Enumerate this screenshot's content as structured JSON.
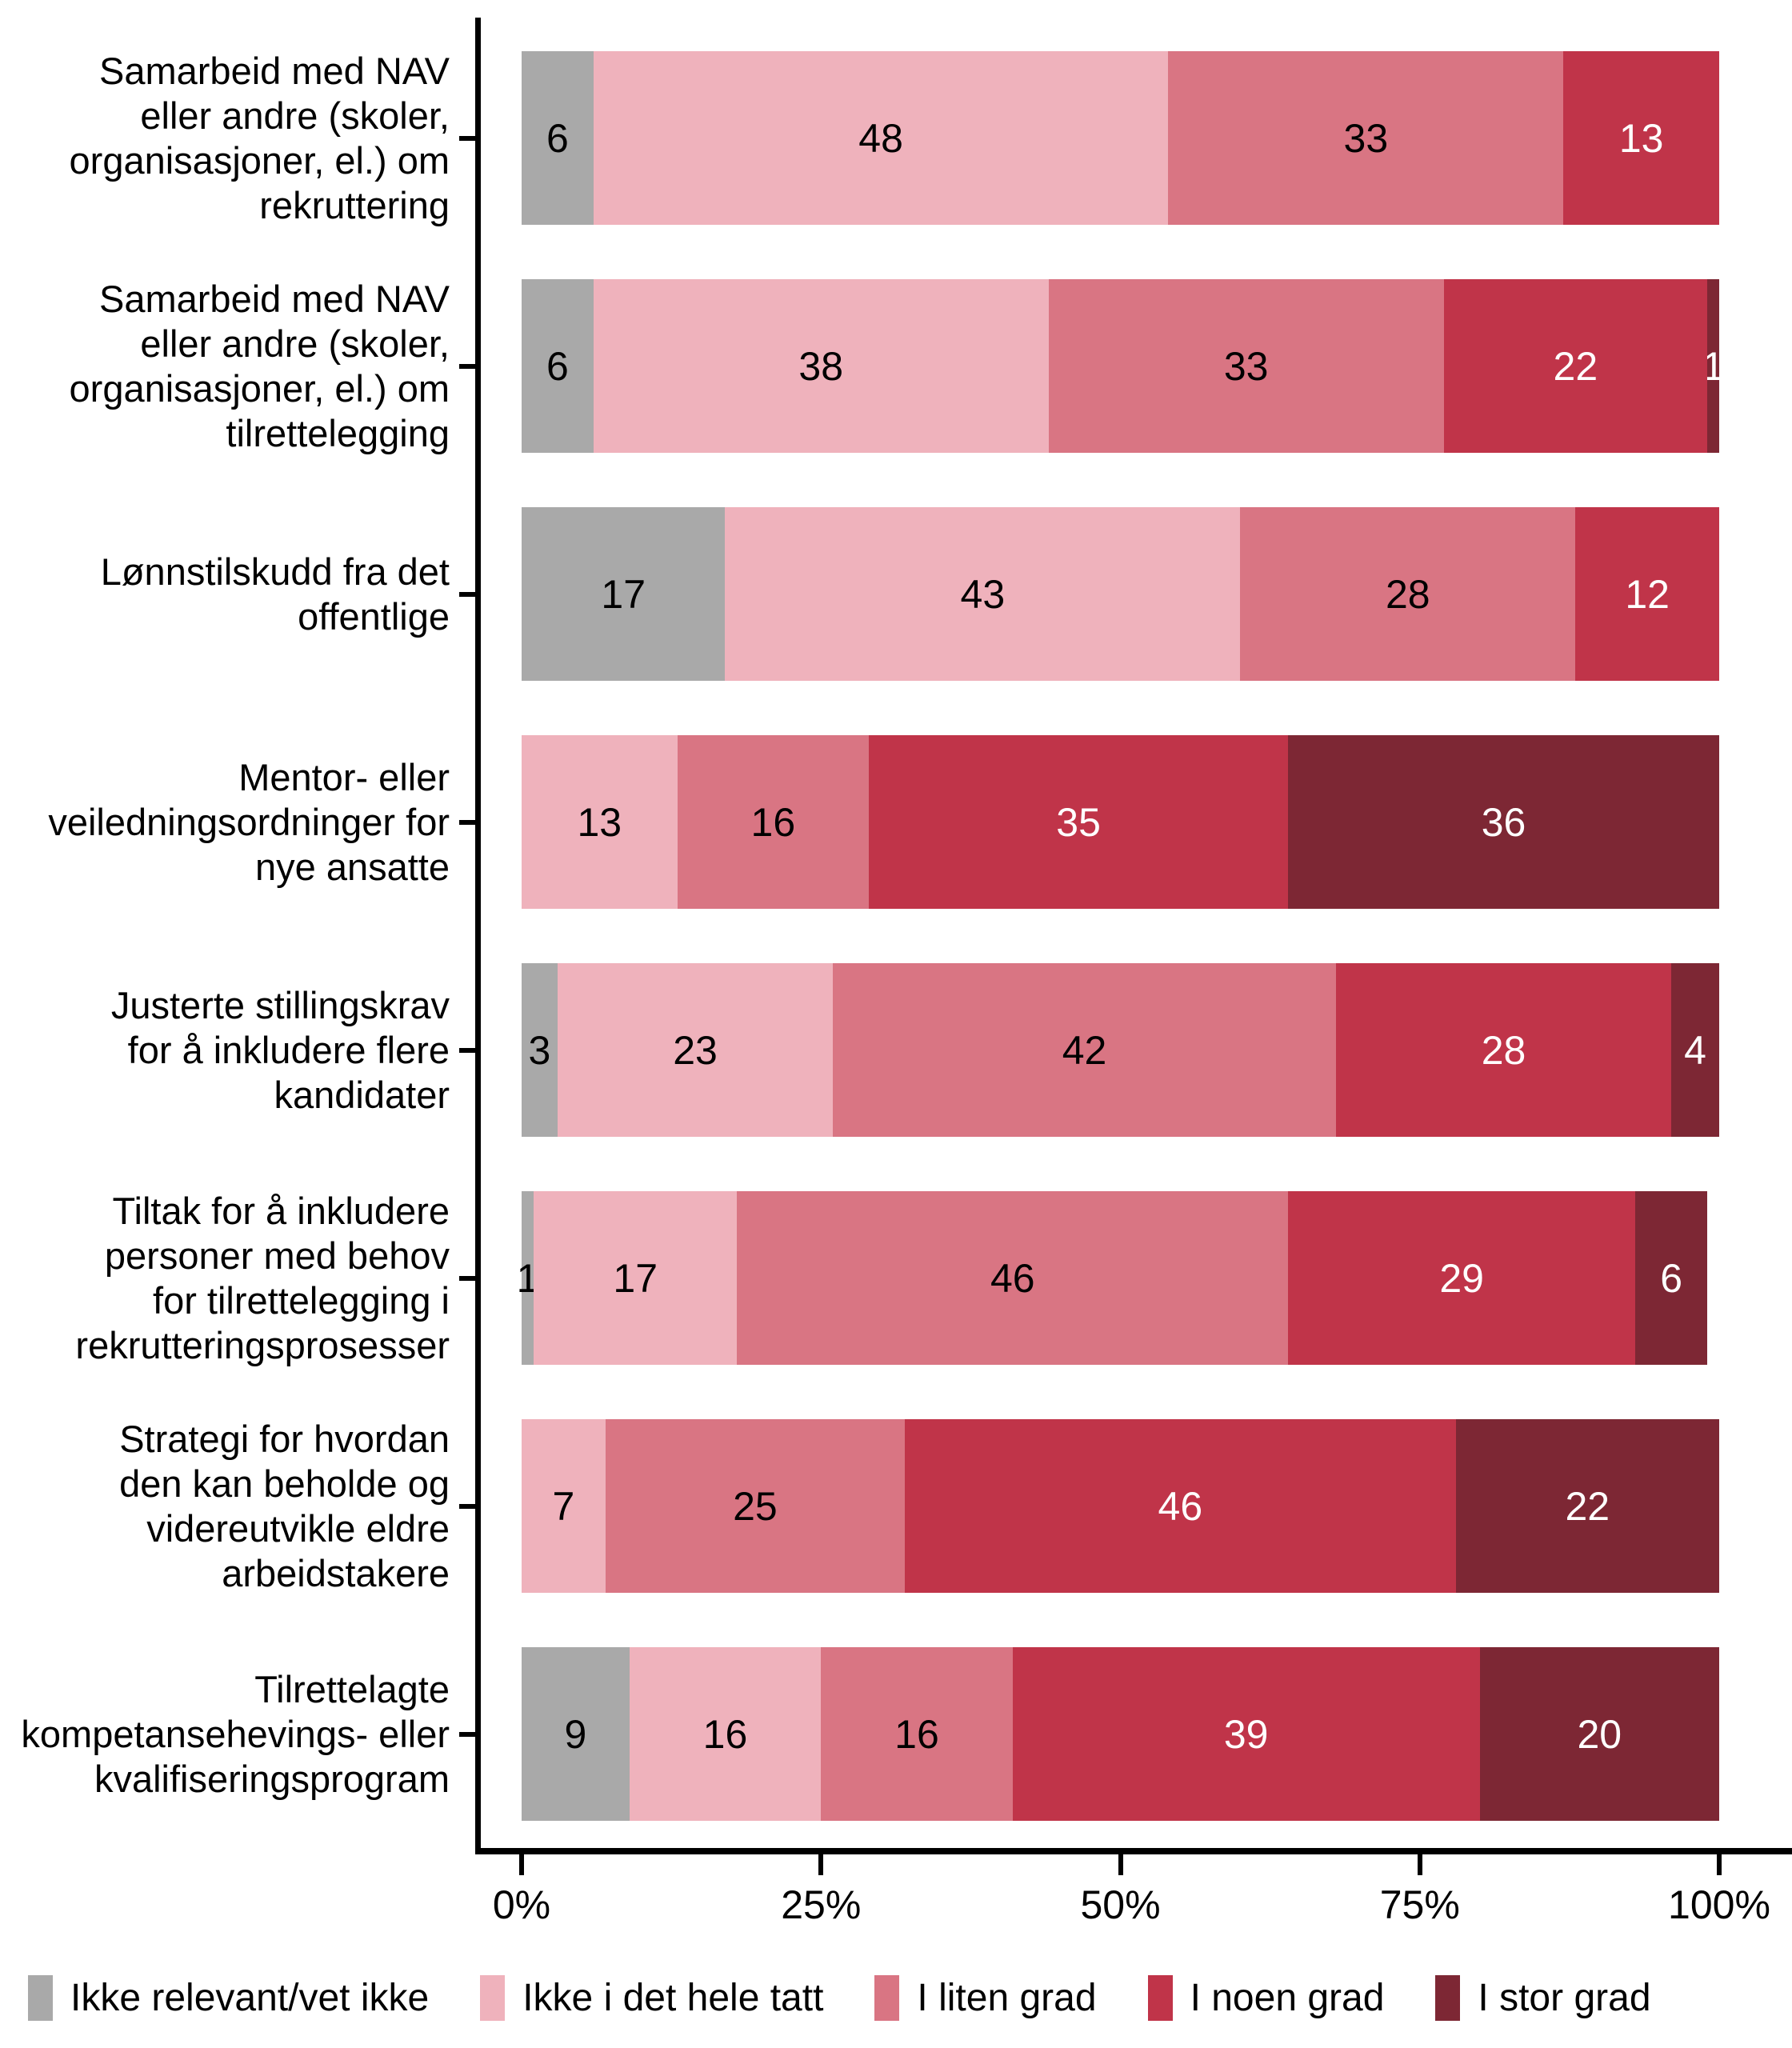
{
  "chart_data": {
    "type": "bar",
    "orientation": "horizontal",
    "stacked": true,
    "unit": "percent",
    "title": "",
    "xlabel": "",
    "ylabel": "",
    "xlim": [
      0,
      100
    ],
    "grid": false,
    "legend_position": "bottom",
    "x_ticks": [
      {
        "value": 0,
        "label": "0%"
      },
      {
        "value": 25,
        "label": "25%"
      },
      {
        "value": 50,
        "label": "50%"
      },
      {
        "value": 75,
        "label": "75%"
      },
      {
        "value": 100,
        "label": "100%"
      }
    ],
    "categories": [
      "Samarbeid med NAV\neller andre (skoler,\norganisasjoner, el.) om\nrekruttering",
      "Samarbeid med NAV\neller andre (skoler,\norganisasjoner, el.) om\ntilrettelegging",
      "Lønnstilskudd fra det\noffentlige",
      "Mentor- eller\nveiledningsordninger for\nnye ansatte",
      "Justerte stillingskrav\nfor å inkludere flere\nkandidater",
      "Tiltak for å inkludere\npersoner med behov\nfor tilrettelegging i\nrekrutteringsprosesser",
      "Strategi for hvordan\nden kan beholde og\nvidereutvikle eldre\narbeidstakere",
      "Tilrettelagte\nkompetansehevings- eller\nkvalifiseringsprogram"
    ],
    "series": [
      {
        "name": "Ikke relevant/vet ikke",
        "color": "#A9A9A9",
        "label_color": "#000000",
        "values": [
          6,
          6,
          17,
          0,
          3,
          1,
          0,
          9
        ]
      },
      {
        "name": "Ikke i det hele tatt",
        "color": "#EFB2BC",
        "label_color": "#000000",
        "values": [
          48,
          38,
          43,
          13,
          23,
          17,
          7,
          16
        ]
      },
      {
        "name": "I liten grad",
        "color": "#D97583",
        "label_color": "#000000",
        "values": [
          33,
          33,
          28,
          16,
          42,
          46,
          25,
          16
        ]
      },
      {
        "name": "I noen grad",
        "color": "#C03449",
        "label_color": "#FFFFFF",
        "values": [
          13,
          22,
          12,
          35,
          28,
          29,
          46,
          39
        ]
      },
      {
        "name": "I stor grad",
        "color": "#7D2734",
        "label_color": "#FFFFFF",
        "values": [
          0,
          1,
          0,
          36,
          4,
          6,
          22,
          20
        ]
      }
    ]
  },
  "layout_colors": {
    "axis": "#000000",
    "background": "#FFFFFF"
  }
}
